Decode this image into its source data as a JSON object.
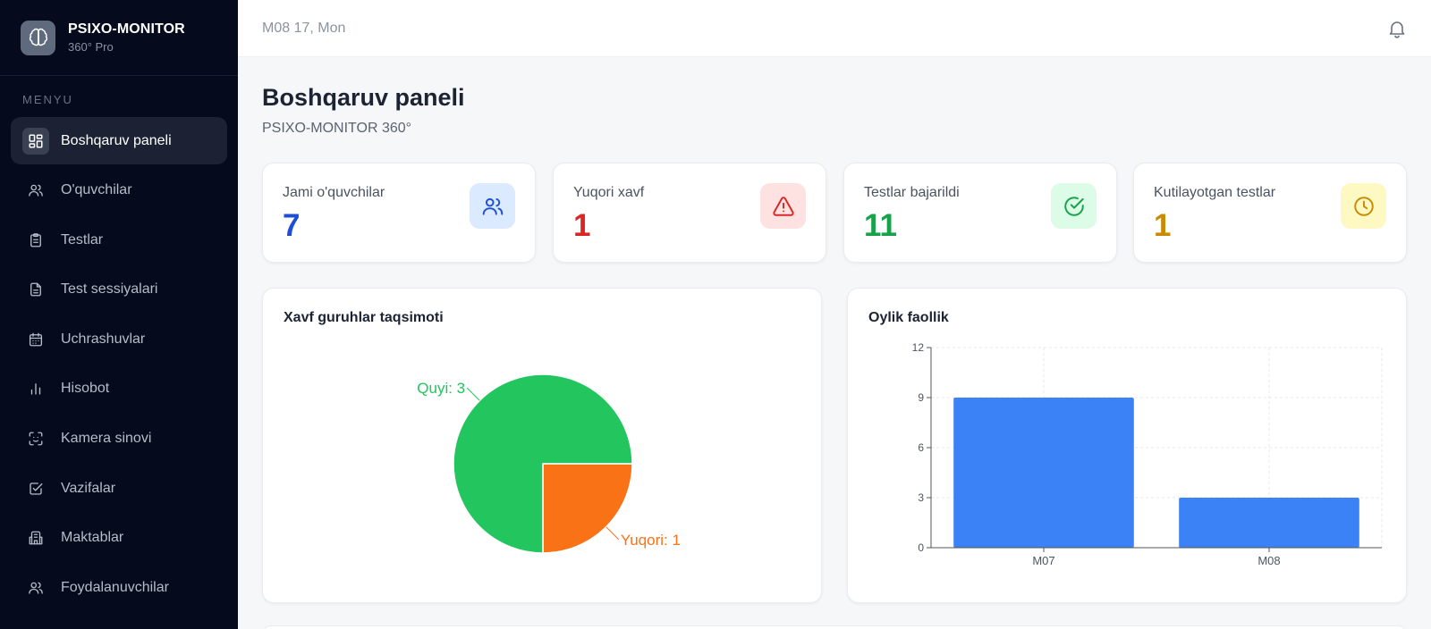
{
  "brand": {
    "title": "PSIXO-MONITOR",
    "subtitle": "360° Pro",
    "logo_icon": "brain-icon"
  },
  "sidebar": {
    "heading": "MENYU",
    "items": [
      {
        "label": "Boshqaruv paneli",
        "icon": "dashboard-icon",
        "active": true
      },
      {
        "label": "O'quvchilar",
        "icon": "users-icon"
      },
      {
        "label": "Testlar",
        "icon": "clipboard-icon"
      },
      {
        "label": "Test sessiyalari",
        "icon": "document-icon"
      },
      {
        "label": "Uchrashuvlar",
        "icon": "calendar-icon"
      },
      {
        "label": "Hisobot",
        "icon": "bar-chart-icon"
      },
      {
        "label": "Kamera sinovi",
        "icon": "camera-scan-icon"
      },
      {
        "label": "Vazifalar",
        "icon": "checkbox-icon"
      },
      {
        "label": "Maktablar",
        "icon": "building-icon"
      },
      {
        "label": "Foydalanuvchilar",
        "icon": "users-icon"
      }
    ]
  },
  "topbar": {
    "date": "M08 17, Mon",
    "bell_icon": "bell-icon"
  },
  "page": {
    "title": "Boshqaruv paneli",
    "subtitle": "PSIXO-MONITOR 360°"
  },
  "stats": [
    {
      "label": "Jami o'quvchilar",
      "value": "7",
      "color": "#1d4ed8",
      "icon_bg": "#dbeafe",
      "icon": "users-icon"
    },
    {
      "label": "Yuqori xavf",
      "value": "1",
      "color": "#dc2626",
      "icon_bg": "#fee2e2",
      "icon": "warning-icon"
    },
    {
      "label": "Testlar bajarildi",
      "value": "11",
      "color": "#16a34a",
      "icon_bg": "#dcfce7",
      "icon": "check-circle-icon"
    },
    {
      "label": "Kutilayotgan testlar",
      "value": "1",
      "color": "#ca8a04",
      "icon_bg": "#fef9c3",
      "icon": "clock-icon"
    }
  ],
  "chart_data": [
    {
      "type": "pie",
      "title": "Xavf guruhlar taqsimoti",
      "slices": [
        {
          "name": "Quyi",
          "value": 3,
          "label": "Quyi: 3",
          "color": "#22c55e"
        },
        {
          "name": "Yuqori",
          "value": 1,
          "label": "Yuqori: 1",
          "color": "#f97316"
        }
      ]
    },
    {
      "type": "bar",
      "title": "Oylik faollik",
      "categories": [
        "M07",
        "M08"
      ],
      "values": [
        9,
        3
      ],
      "ylim": [
        0,
        12
      ],
      "yticks": [
        "0",
        "3",
        "6",
        "9",
        "12"
      ],
      "grid": true,
      "color": "#3b82f6"
    }
  ]
}
